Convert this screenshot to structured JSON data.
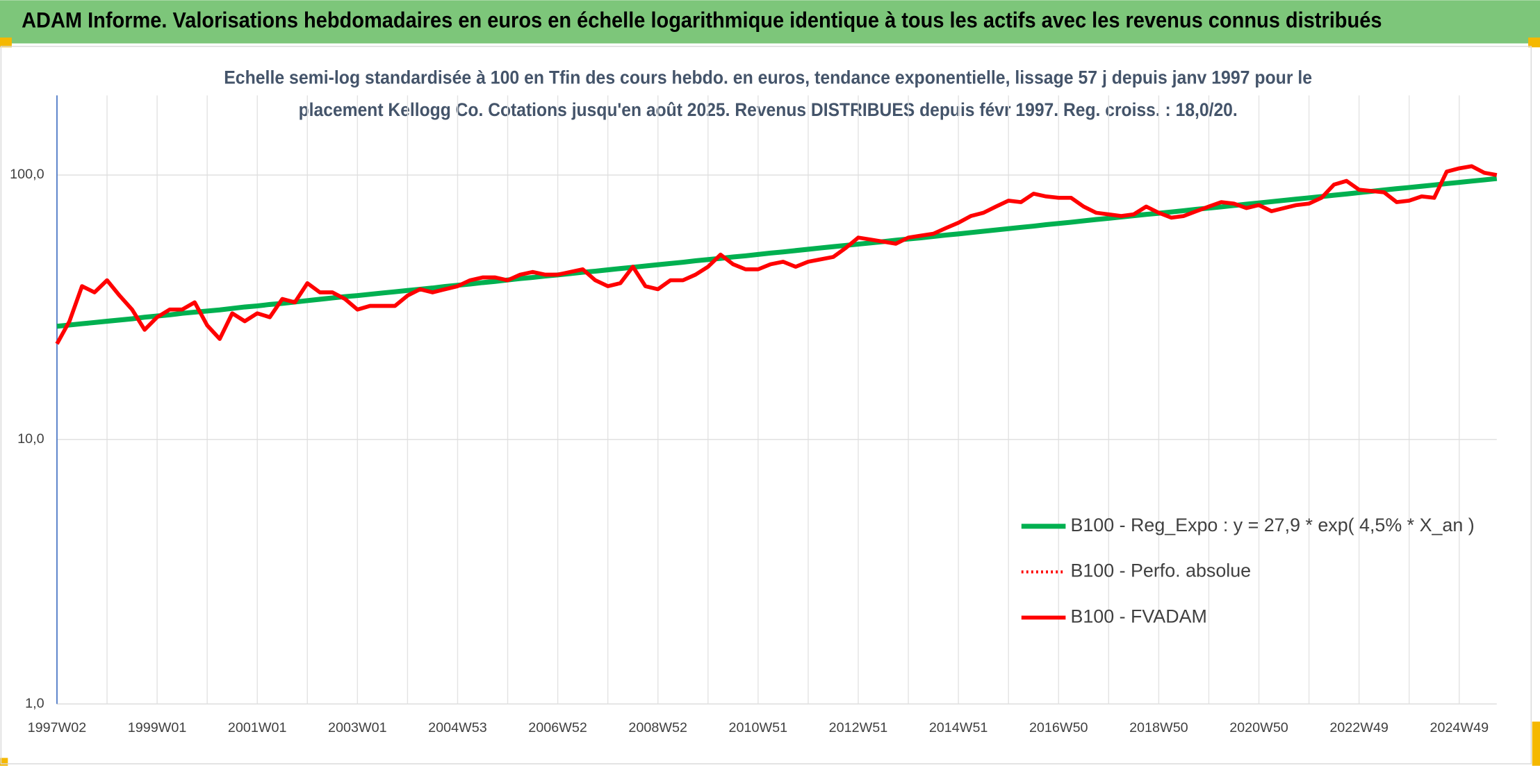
{
  "chart_data": {
    "type": "line",
    "title": "ADAM Informe. Valorisations hebdomadaires en euros en échelle logarithmique identique à tous les actifs avec les revenus connus distribués",
    "subtitle_lines": [
      "Echelle semi-log standardisée à 100 en Tfin des cours hebdo. en euros, tendance exponentielle, lissage 57 j depuis janv 1997 pour le",
      "placement Kellogg Co. Cotations jusqu'en août 2025. Revenus DISTRIBUES depuis févr 1997. Reg. croiss. : 18,0/20."
    ],
    "categories": [
      "1997W02",
      null,
      null,
      null,
      null,
      null,
      null,
      null,
      "1999W01",
      null,
      null,
      null,
      null,
      null,
      null,
      null,
      "2001W01",
      null,
      null,
      null,
      null,
      null,
      null,
      null,
      "2003W01",
      null,
      null,
      null,
      null,
      null,
      null,
      null,
      "2004W53",
      null,
      null,
      null,
      null,
      null,
      null,
      null,
      "2006W52",
      null,
      null,
      null,
      null,
      null,
      null,
      null,
      "2008W52",
      null,
      null,
      null,
      null,
      null,
      null,
      null,
      "2010W51",
      null,
      null,
      null,
      null,
      null,
      null,
      null,
      "2012W51",
      null,
      null,
      null,
      null,
      null,
      null,
      null,
      "2014W51",
      null,
      null,
      null,
      null,
      null,
      null,
      null,
      "2016W50",
      null,
      null,
      null,
      null,
      null,
      null,
      null,
      "2018W50",
      null,
      null,
      null,
      null,
      null,
      null,
      null,
      "2020W50",
      null,
      null,
      null,
      null,
      null,
      null,
      null,
      "2022W49",
      null,
      null,
      null,
      null,
      null,
      null,
      null,
      "2024W49",
      null,
      null,
      null
    ],
    "series": [
      {
        "name": "B100 - Reg_Expo : y = 27,9 * exp( 4,5% *  X_an )",
        "color": "#00b050",
        "style": "solid",
        "values": [
          26.8,
          27.1,
          27.4,
          27.7,
          28.0,
          28.3,
          28.6,
          29.0,
          29.3,
          29.6,
          30.0,
          30.3,
          30.6,
          30.9,
          31.3,
          31.7,
          32.0,
          32.4,
          32.7,
          33.1,
          33.5,
          33.9,
          34.3,
          34.7,
          35.0,
          35.4,
          35.8,
          36.2,
          36.6,
          37.0,
          37.4,
          37.9,
          38.3,
          38.7,
          39.2,
          39.6,
          40.1,
          40.6,
          41.0,
          41.5,
          41.9,
          42.4,
          42.9,
          43.3,
          43.8,
          44.3,
          44.8,
          45.3,
          45.8,
          46.3,
          46.8,
          47.4,
          47.9,
          48.4,
          49.0,
          49.5,
          50.1,
          50.7,
          51.2,
          51.8,
          52.4,
          53.0,
          53.6,
          54.2,
          54.8,
          55.4,
          56.0,
          56.7,
          57.3,
          57.9,
          58.6,
          59.3,
          59.9,
          60.6,
          61.3,
          62.0,
          62.7,
          63.4,
          64.1,
          64.9,
          65.6,
          66.3,
          67.1,
          67.9,
          68.6,
          69.4,
          70.2,
          71.0,
          71.7,
          72.5,
          73.3,
          74.2,
          75.0,
          75.8,
          76.7,
          77.6,
          78.4,
          79.3,
          80.2,
          81.1,
          82.0,
          82.9,
          83.9,
          84.8,
          85.8,
          86.8,
          87.8,
          88.8,
          89.7,
          90.7,
          91.7,
          92.8,
          93.8,
          94.9,
          95.9,
          97.0
        ]
      },
      {
        "name": "B100 - Perfo. absolue",
        "color": "#ff0000",
        "style": "dotted",
        "values": [
          null,
          null,
          null,
          null,
          null,
          null,
          null,
          null,
          null,
          null,
          null,
          null,
          null,
          null,
          null,
          null,
          null,
          null,
          null,
          null,
          null,
          null,
          null,
          null,
          null,
          null,
          null,
          null,
          null,
          null,
          null,
          null,
          null,
          null,
          null,
          null,
          null,
          null,
          null,
          null,
          null,
          null,
          null,
          null,
          null,
          null,
          null,
          null,
          null,
          null,
          null,
          null,
          null,
          null,
          null,
          null,
          null,
          null,
          null,
          null,
          null,
          null,
          null,
          null,
          null,
          null,
          null,
          null,
          null,
          null,
          null,
          null,
          null,
          null,
          null,
          null,
          null,
          null,
          null,
          null,
          null,
          null,
          null,
          null,
          null,
          null,
          null,
          null,
          null,
          null,
          null,
          null,
          null,
          null,
          null,
          null,
          null,
          null,
          null,
          null,
          null,
          null,
          null,
          null,
          null,
          null,
          null,
          null,
          null,
          null,
          null,
          null,
          null,
          null,
          null,
          null
        ]
      },
      {
        "name": "B100 - FVADAM",
        "color": "#ff0000",
        "style": "solid",
        "values": [
          23,
          28,
          38,
          36,
          40,
          35,
          31,
          26,
          29,
          31,
          31,
          33,
          27,
          24,
          30,
          28,
          30,
          29,
          34,
          33,
          39,
          36,
          36,
          34,
          31,
          32,
          32,
          32,
          35,
          37,
          36,
          37,
          38,
          40,
          41,
          41,
          40,
          42,
          43,
          42,
          42,
          43,
          44,
          40,
          38,
          39,
          45,
          38,
          37,
          40,
          40,
          42,
          45,
          50,
          46,
          44,
          44,
          46,
          47,
          45,
          47,
          48,
          49,
          53,
          58,
          57,
          56,
          55,
          58,
          59,
          60,
          63,
          66,
          70,
          72,
          76,
          80,
          79,
          85,
          83,
          82,
          82,
          76,
          72,
          71,
          70,
          71,
          76,
          72,
          69,
          70,
          73,
          76,
          79,
          78,
          75,
          77,
          73,
          75,
          77,
          78,
          82,
          92,
          95,
          88,
          87,
          86,
          79,
          80,
          83,
          82,
          103,
          106,
          108,
          102,
          100
        ]
      }
    ],
    "log_scale": true,
    "ylim": [
      1,
      200
    ],
    "yticks": [
      {
        "value": 1,
        "label": "1,0"
      },
      {
        "value": 10,
        "label": "10,0"
      },
      {
        "value": 100,
        "label": "100,0"
      }
    ],
    "grid": true,
    "legend": "lower right"
  }
}
